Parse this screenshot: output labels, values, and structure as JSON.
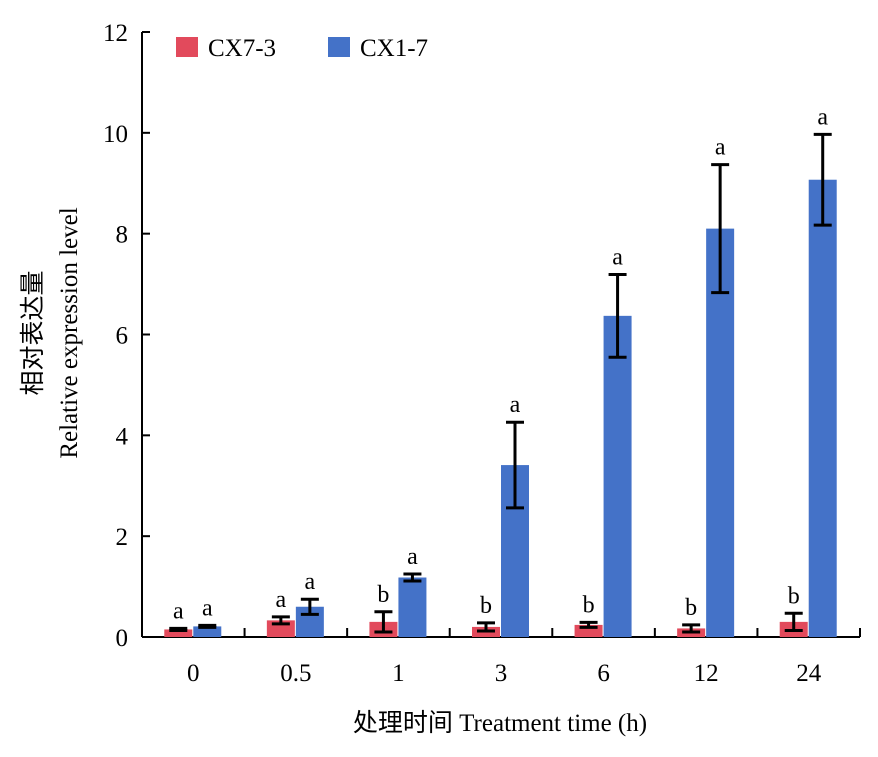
{
  "chart_data": {
    "type": "bar",
    "categories": [
      "0",
      "0.5",
      "1",
      "3",
      "6",
      "12",
      "24"
    ],
    "series": [
      {
        "name": "CX7-3",
        "color": "#e24a5c",
        "values": [
          0.15,
          0.33,
          0.3,
          0.2,
          0.24,
          0.17,
          0.3
        ],
        "errors": [
          0.02,
          0.07,
          0.2,
          0.08,
          0.05,
          0.07,
          0.17
        ],
        "significance": [
          "a",
          "a",
          "b",
          "b",
          "b",
          "b",
          "b"
        ]
      },
      {
        "name": "CX1-7",
        "color": "#4472c8",
        "values": [
          0.21,
          0.6,
          1.18,
          3.41,
          6.37,
          8.1,
          9.07
        ],
        "errors": [
          0.02,
          0.15,
          0.07,
          0.85,
          0.82,
          1.27,
          0.9
        ],
        "significance": [
          "a",
          "a",
          "a",
          "a",
          "a",
          "a",
          "a"
        ]
      }
    ],
    "xlabel": "处理时间 Treatment time (h)",
    "ylabel_cn": "相对表达量",
    "ylabel_en": "Relative expression level",
    "ylim": [
      0,
      12
    ],
    "yticks": [
      "0",
      "2",
      "4",
      "6",
      "8",
      "10",
      "12"
    ],
    "grid": false,
    "legend": "top-left"
  }
}
